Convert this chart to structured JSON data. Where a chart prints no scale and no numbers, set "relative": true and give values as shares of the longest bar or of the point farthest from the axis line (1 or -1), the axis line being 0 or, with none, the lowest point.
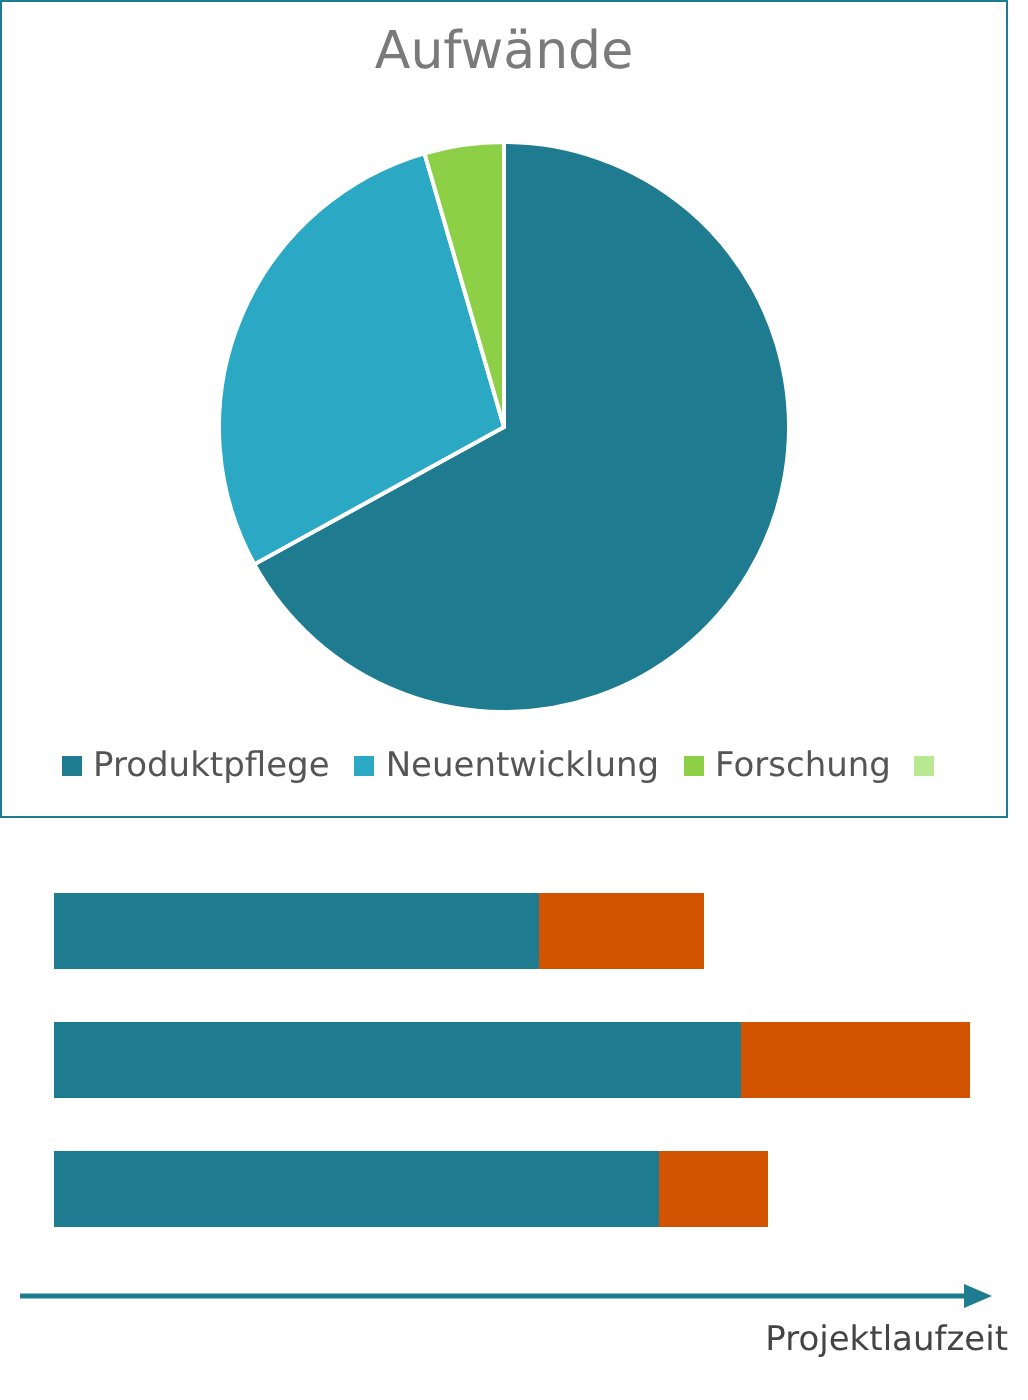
{
  "chart_data": [
    {
      "type": "pie",
      "title": "Aufwände",
      "categories": [
        "Produktpflege",
        "Neuentwicklung",
        "Forschung",
        null
      ],
      "values": [
        67,
        28.5,
        4.5,
        0
      ],
      "colors": [
        "#1f7b8f",
        "#2aa8c4",
        "#8dcf47",
        "#b8e890"
      ],
      "legend": "bottom"
    },
    {
      "type": "bar",
      "orientation": "horizontal",
      "stacked": true,
      "relative": true,
      "categories": [
        null,
        null,
        null
      ],
      "xlabel": "Projektlaufzeit",
      "series": [
        {
          "color": "#1f7b8f",
          "values": [
            0.53,
            0.75,
            0.66
          ]
        },
        {
          "color": "#d35400",
          "values": [
            0.18,
            0.25,
            0.12
          ]
        }
      ]
    }
  ]
}
